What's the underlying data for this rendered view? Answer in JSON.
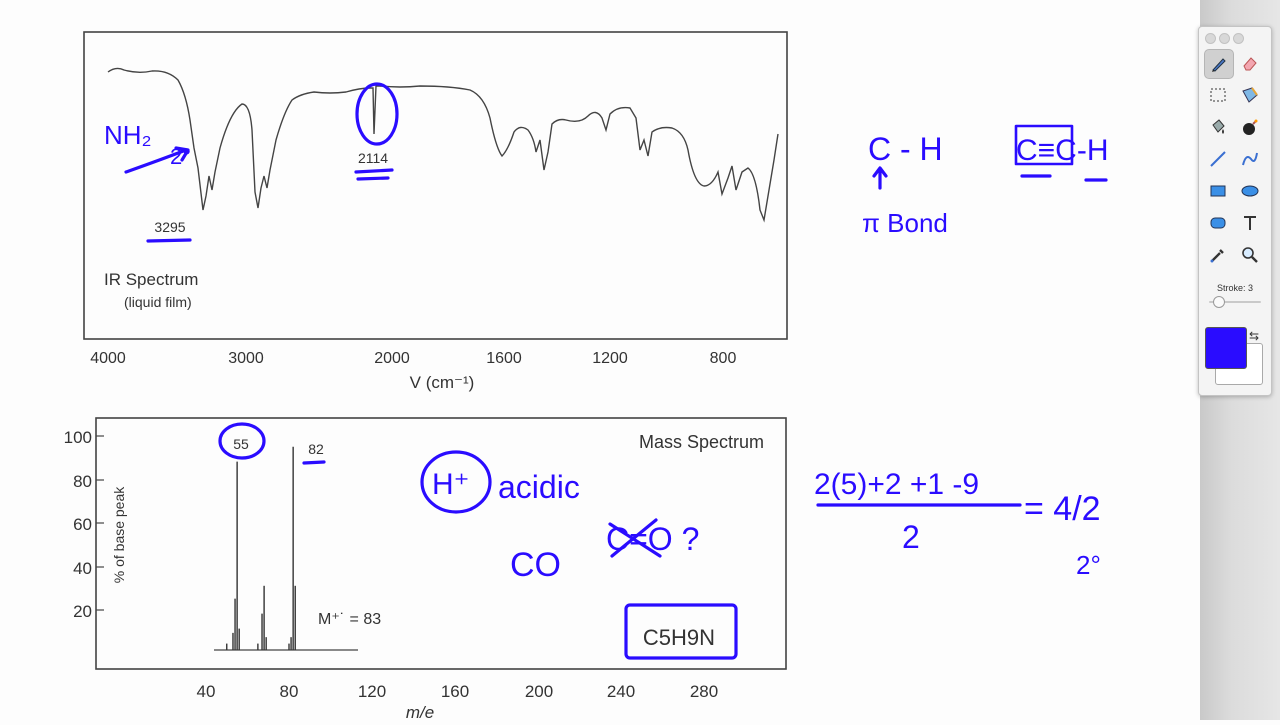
{
  "ir": {
    "title": "IR Spectrum",
    "subtitle": "(liquid film)",
    "x_axis_label": "V (cm⁻¹)",
    "ticks": [
      "4000",
      "3000",
      "2000",
      "1600",
      "1200",
      "800"
    ],
    "peak_labels": [
      "3295",
      "2114"
    ]
  },
  "ms": {
    "title": "Mass Spectrum",
    "y_axis_label": "% of base peak",
    "x_axis_label": "m/e",
    "x_ticks": [
      "40",
      "80",
      "120",
      "160",
      "200",
      "240",
      "280"
    ],
    "y_ticks": [
      "100",
      "80",
      "60",
      "40",
      "20"
    ],
    "peak_labels": [
      "55",
      "82"
    ],
    "molecular_ion": "M⁺˙ = 83",
    "formula": "C5H9N"
  },
  "annotations": {
    "nh2": "NH₂",
    "two": "2°",
    "alkyne_ch": "C - H",
    "arrow_up": "↑",
    "pi_bond": "π Bond",
    "triple": "C≡C-H",
    "h_plus": "H⁺",
    "acidic": "acidic",
    "co": "CO",
    "co_cross": "C=O ?",
    "dbe_numer": "2(5)+2 +1 -9",
    "dbe_denom": "2",
    "dbe_result": "= 4/2",
    "dbe_final": "2°"
  },
  "palette": {
    "stroke_label": "Stroke: 3",
    "current_color": "#2a0cff",
    "tools": [
      "pen-icon",
      "eraser-icon",
      "select-rect-icon",
      "select-lasso-icon",
      "fill-icon",
      "bomb-icon",
      "line-icon",
      "curve-icon",
      "rectangle-icon",
      "ellipse-icon",
      "rounded-rect-icon",
      "text-icon",
      "eyedropper-icon",
      "magnifier-icon"
    ]
  },
  "colors": {
    "ink": "#2a0cff",
    "print": "#333333",
    "palette_bg": "#f4f4f4"
  },
  "chart_data": [
    {
      "type": "line",
      "title": "IR Spectrum",
      "xlabel": "V (cm⁻¹)",
      "ylabel": "",
      "xlim": [
        4000,
        600
      ],
      "peaks_cm-1": [
        3295,
        2114
      ]
    },
    {
      "type": "bar",
      "title": "Mass Spectrum",
      "xlabel": "m/e",
      "ylabel": "% of base peak",
      "xlim": [
        25,
        315
      ],
      "ylim": [
        0,
        100
      ],
      "x": [
        50,
        53,
        54,
        55,
        56,
        65,
        67,
        68,
        69,
        80,
        81,
        82,
        83
      ],
      "values": [
        3,
        8,
        24,
        88,
        10,
        3,
        17,
        30,
        6,
        3,
        6,
        95,
        30
      ]
    }
  ]
}
